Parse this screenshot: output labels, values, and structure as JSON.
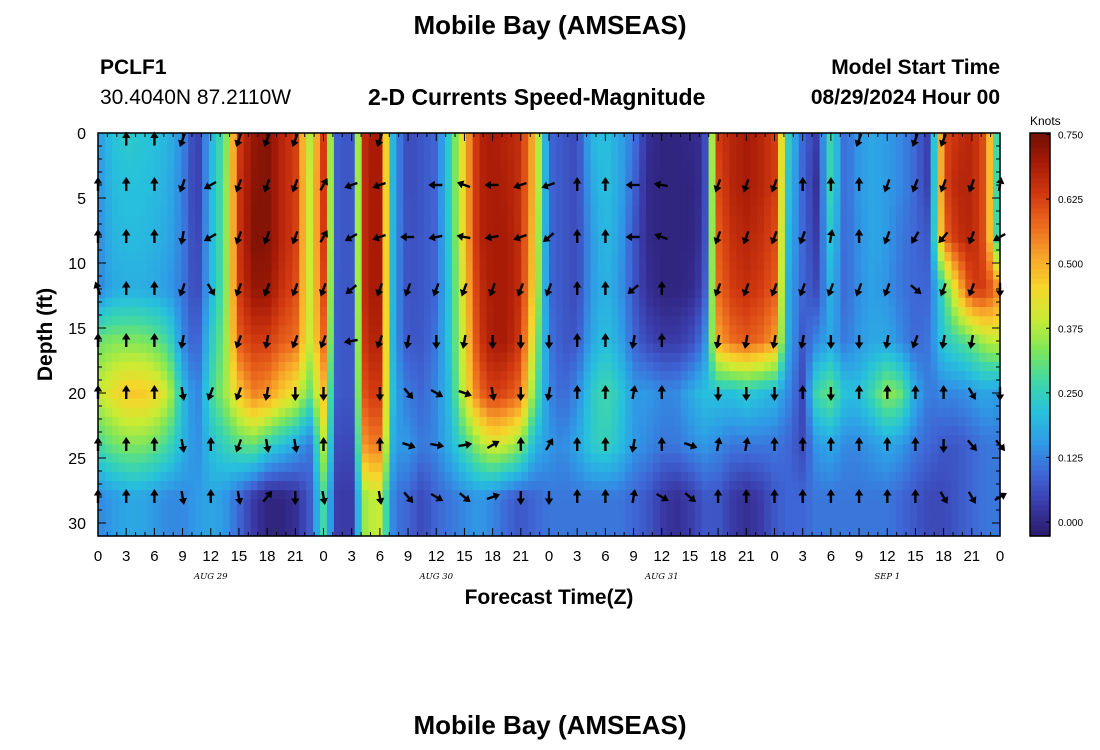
{
  "header": {
    "title": "Mobile Bay (AMSEAS)",
    "station_id": "PCLF1",
    "station_coords": "30.4040N  87.2110W",
    "subtitle": "2-D Currents Speed-Magnitude",
    "model_start_label": "Model Start Time",
    "model_start_value": "08/29/2024 Hour 00"
  },
  "footer": {
    "title_repeat": "Mobile Bay (AMSEAS)"
  },
  "chart_data": {
    "type": "heatmap",
    "title": "2-D Currents Speed-Magnitude",
    "xlabel": "Forecast Time(Z)",
    "ylabel": "Depth (ft)",
    "x_start": "08/29/2024 00Z",
    "x_range_hours": [
      0,
      96
    ],
    "x_tick_labels": [
      "0",
      "3",
      "6",
      "9",
      "12",
      "15",
      "18",
      "21",
      "0",
      "3",
      "6",
      "9",
      "12",
      "15",
      "18",
      "21",
      "0",
      "3",
      "6",
      "9",
      "12",
      "15",
      "18",
      "21",
      "0",
      "3",
      "6",
      "9",
      "12",
      "15",
      "18",
      "21",
      "0"
    ],
    "date_labels": [
      {
        "label": "AUG 29",
        "hour": 12
      },
      {
        "label": "AUG 30",
        "hour": 36
      },
      {
        "label": "AUG 31",
        "hour": 60
      },
      {
        "label": "SEP 1",
        "hour": 84
      }
    ],
    "ylim": [
      0,
      31
    ],
    "y_inverted": true,
    "y_ticks": [
      0,
      5,
      10,
      15,
      20,
      25,
      30
    ],
    "colorbar": {
      "unit": "Knots",
      "range": [
        0,
        0.78
      ],
      "tick_labels": [
        "0.000",
        "0.125",
        "0.250",
        "0.375",
        "0.500",
        "0.625",
        "0.750"
      ],
      "colormap": [
        "#2b1a6a",
        "#3a3aa8",
        "#3f66d6",
        "#2f9ae6",
        "#27c1dc",
        "#3fd8a6",
        "#7fe65a",
        "#c9ec34",
        "#f6d62a",
        "#f7a52a",
        "#ec6a1e",
        "#d23a10",
        "#a81b07",
        "#701005"
      ]
    },
    "depths": [
      0.5,
      4,
      8,
      12,
      16,
      20,
      24,
      28
    ],
    "hours": [
      0,
      1.5,
      3,
      4.5,
      6,
      7.5,
      9,
      10.5,
      12,
      13.5,
      15,
      16.5,
      18,
      19.5,
      21,
      22.5,
      24,
      25.5,
      27,
      28.5,
      30,
      31.5,
      33,
      34.5,
      36,
      37.5,
      39,
      40.5,
      42,
      43.5,
      45,
      46.5,
      48,
      49.5,
      51,
      52.5,
      54,
      55.5,
      57,
      58.5,
      60,
      61.5,
      63,
      64.5,
      66,
      67.5,
      69,
      70.5,
      72,
      73.5,
      75,
      76.5,
      78,
      79.5,
      81,
      82.5,
      84,
      85.5,
      87,
      88.5,
      90,
      91.5,
      93,
      94.5,
      96
    ],
    "speed_knots": [
      [
        0.18,
        0.24,
        0.26,
        0.25,
        0.24,
        0.22,
        0.16,
        0.05,
        0.22,
        0.33,
        0.66,
        0.74,
        0.76,
        0.7,
        0.66,
        0.4,
        0.66,
        0.1,
        0.1,
        0.72,
        0.72,
        0.18,
        0.08,
        0.1,
        0.12,
        0.28,
        0.5,
        0.7,
        0.72,
        0.7,
        0.68,
        0.5,
        0.12,
        0.1,
        0.08,
        0.22,
        0.24,
        0.2,
        0.14,
        0.04,
        0.02,
        0.02,
        0.03,
        0.04,
        0.66,
        0.7,
        0.72,
        0.7,
        0.66,
        0.26,
        0.12,
        0.06,
        0.3,
        0.12,
        0.18,
        0.2,
        0.18,
        0.16,
        0.12,
        0.06,
        0.64,
        0.68,
        0.7,
        0.62,
        0.2
      ],
      [
        0.17,
        0.23,
        0.24,
        0.24,
        0.23,
        0.21,
        0.15,
        0.05,
        0.22,
        0.34,
        0.67,
        0.75,
        0.76,
        0.7,
        0.66,
        0.42,
        0.66,
        0.1,
        0.1,
        0.72,
        0.72,
        0.18,
        0.08,
        0.1,
        0.12,
        0.28,
        0.5,
        0.7,
        0.72,
        0.71,
        0.68,
        0.5,
        0.12,
        0.1,
        0.08,
        0.2,
        0.24,
        0.2,
        0.12,
        0.03,
        0.02,
        0.02,
        0.02,
        0.04,
        0.64,
        0.7,
        0.72,
        0.7,
        0.66,
        0.24,
        0.12,
        0.04,
        0.3,
        0.12,
        0.18,
        0.2,
        0.18,
        0.16,
        0.12,
        0.06,
        0.64,
        0.7,
        0.7,
        0.62,
        0.2
      ],
      [
        0.16,
        0.22,
        0.23,
        0.23,
        0.22,
        0.2,
        0.15,
        0.06,
        0.22,
        0.34,
        0.67,
        0.76,
        0.76,
        0.7,
        0.66,
        0.42,
        0.66,
        0.1,
        0.1,
        0.72,
        0.72,
        0.18,
        0.09,
        0.1,
        0.12,
        0.27,
        0.5,
        0.7,
        0.72,
        0.72,
        0.68,
        0.48,
        0.12,
        0.1,
        0.08,
        0.18,
        0.23,
        0.19,
        0.1,
        0.03,
        0.02,
        0.02,
        0.02,
        0.05,
        0.62,
        0.68,
        0.7,
        0.68,
        0.64,
        0.22,
        0.12,
        0.06,
        0.26,
        0.12,
        0.17,
        0.2,
        0.18,
        0.14,
        0.12,
        0.1,
        0.6,
        0.68,
        0.7,
        0.62,
        0.2
      ],
      [
        0.15,
        0.2,
        0.21,
        0.21,
        0.2,
        0.18,
        0.14,
        0.07,
        0.22,
        0.34,
        0.66,
        0.74,
        0.74,
        0.68,
        0.64,
        0.42,
        0.64,
        0.1,
        0.1,
        0.72,
        0.72,
        0.18,
        0.09,
        0.1,
        0.12,
        0.26,
        0.48,
        0.68,
        0.72,
        0.72,
        0.68,
        0.46,
        0.12,
        0.1,
        0.08,
        0.18,
        0.22,
        0.18,
        0.1,
        0.04,
        0.02,
        0.02,
        0.03,
        0.07,
        0.6,
        0.66,
        0.68,
        0.66,
        0.62,
        0.2,
        0.12,
        0.08,
        0.22,
        0.12,
        0.17,
        0.19,
        0.17,
        0.14,
        0.12,
        0.12,
        0.3,
        0.5,
        0.66,
        0.66,
        0.56
      ],
      [
        0.34,
        0.36,
        0.36,
        0.36,
        0.34,
        0.3,
        0.16,
        0.1,
        0.26,
        0.36,
        0.62,
        0.66,
        0.66,
        0.62,
        0.6,
        0.42,
        0.6,
        0.1,
        0.1,
        0.7,
        0.7,
        0.18,
        0.1,
        0.1,
        0.14,
        0.26,
        0.46,
        0.66,
        0.72,
        0.72,
        0.66,
        0.4,
        0.14,
        0.1,
        0.1,
        0.2,
        0.24,
        0.2,
        0.12,
        0.08,
        0.06,
        0.06,
        0.08,
        0.14,
        0.54,
        0.6,
        0.62,
        0.6,
        0.55,
        0.2,
        0.1,
        0.16,
        0.2,
        0.14,
        0.18,
        0.2,
        0.2,
        0.16,
        0.12,
        0.14,
        0.26,
        0.3,
        0.34,
        0.4,
        0.42
      ],
      [
        0.42,
        0.46,
        0.5,
        0.5,
        0.48,
        0.42,
        0.24,
        0.14,
        0.3,
        0.38,
        0.5,
        0.58,
        0.56,
        0.5,
        0.45,
        0.34,
        0.5,
        0.1,
        0.1,
        0.66,
        0.66,
        0.2,
        0.14,
        0.12,
        0.16,
        0.24,
        0.44,
        0.6,
        0.66,
        0.64,
        0.6,
        0.34,
        0.16,
        0.12,
        0.16,
        0.26,
        0.3,
        0.26,
        0.18,
        0.18,
        0.16,
        0.16,
        0.2,
        0.24,
        0.24,
        0.24,
        0.26,
        0.24,
        0.22,
        0.16,
        0.08,
        0.3,
        0.34,
        0.24,
        0.24,
        0.3,
        0.38,
        0.34,
        0.2,
        0.14,
        0.16,
        0.16,
        0.18,
        0.2,
        0.18
      ],
      [
        0.3,
        0.34,
        0.36,
        0.36,
        0.34,
        0.3,
        0.22,
        0.16,
        0.24,
        0.28,
        0.32,
        0.34,
        0.28,
        0.24,
        0.2,
        0.14,
        0.4,
        0.08,
        0.08,
        0.58,
        0.58,
        0.18,
        0.18,
        0.14,
        0.16,
        0.22,
        0.3,
        0.38,
        0.44,
        0.42,
        0.36,
        0.22,
        0.18,
        0.16,
        0.2,
        0.26,
        0.28,
        0.24,
        0.18,
        0.16,
        0.14,
        0.14,
        0.16,
        0.18,
        0.16,
        0.14,
        0.14,
        0.14,
        0.14,
        0.12,
        0.08,
        0.18,
        0.2,
        0.16,
        0.16,
        0.18,
        0.2,
        0.18,
        0.14,
        0.12,
        0.1,
        0.1,
        0.12,
        0.14,
        0.14
      ],
      [
        0.16,
        0.18,
        0.2,
        0.2,
        0.18,
        0.16,
        0.16,
        0.18,
        0.2,
        0.18,
        0.12,
        0.06,
        0.02,
        0.02,
        0.04,
        0.1,
        0.3,
        0.06,
        0.06,
        0.4,
        0.42,
        0.14,
        0.12,
        0.08,
        0.12,
        0.14,
        0.16,
        0.18,
        0.16,
        0.12,
        0.1,
        0.12,
        0.14,
        0.14,
        0.14,
        0.14,
        0.14,
        0.14,
        0.12,
        0.1,
        0.06,
        0.04,
        0.06,
        0.1,
        0.1,
        0.06,
        0.04,
        0.06,
        0.1,
        0.12,
        0.12,
        0.14,
        0.14,
        0.14,
        0.14,
        0.14,
        0.14,
        0.12,
        0.1,
        0.08,
        0.08,
        0.1,
        0.12,
        0.14,
        0.14
      ]
    ],
    "arrow_hours": [
      0,
      3,
      6,
      9,
      12,
      15,
      18,
      21,
      24,
      27,
      30,
      33,
      36,
      39,
      42,
      45,
      48,
      51,
      54,
      57,
      60,
      63,
      66,
      69,
      72,
      75,
      78,
      81,
      84,
      87,
      90,
      93,
      96
    ],
    "arrow_directions_deg": [
      [
        -1,
        0,
        0,
        200,
        -1,
        200,
        200,
        200,
        -1,
        -1,
        200,
        -1,
        -1,
        -1,
        -1,
        -1,
        -1,
        -1,
        -1,
        -1,
        -1,
        -1,
        -1,
        -1,
        -1,
        -1,
        -1,
        200,
        -1,
        200,
        200,
        -1,
        -1
      ],
      [
        0,
        0,
        0,
        200,
        240,
        200,
        200,
        200,
        30,
        250,
        250,
        -1,
        270,
        290,
        270,
        250,
        250,
        0,
        0,
        270,
        280,
        -1,
        200,
        200,
        200,
        0,
        0,
        0,
        200,
        200,
        200,
        200,
        10
      ],
      [
        0,
        0,
        0,
        190,
        240,
        200,
        200,
        200,
        30,
        240,
        250,
        270,
        260,
        280,
        260,
        250,
        230,
        0,
        0,
        270,
        290,
        -1,
        200,
        200,
        200,
        200,
        10,
        0,
        200,
        210,
        220,
        200,
        240
      ],
      [
        340,
        0,
        0,
        200,
        150,
        200,
        200,
        200,
        200,
        230,
        200,
        200,
        200,
        200,
        200,
        200,
        200,
        0,
        0,
        230,
        0,
        -1,
        200,
        200,
        200,
        200,
        200,
        200,
        200,
        130,
        200,
        200,
        180
      ],
      [
        0,
        0,
        0,
        190,
        -1,
        200,
        190,
        200,
        200,
        260,
        200,
        190,
        180,
        190,
        180,
        180,
        180,
        0,
        0,
        190,
        0,
        -1,
        190,
        190,
        190,
        190,
        180,
        180,
        190,
        200,
        190,
        190,
        -1
      ],
      [
        0,
        0,
        0,
        170,
        200,
        200,
        190,
        180,
        180,
        -1,
        180,
        140,
        120,
        110,
        170,
        180,
        190,
        0,
        0,
        10,
        0,
        -1,
        180,
        180,
        180,
        0,
        180,
        0,
        0,
        0,
        0,
        150,
        180
      ],
      [
        0,
        0,
        0,
        170,
        0,
        200,
        170,
        170,
        0,
        -1,
        0,
        110,
        100,
        80,
        60,
        0,
        30,
        0,
        0,
        190,
        0,
        110,
        10,
        10,
        0,
        0,
        0,
        0,
        0,
        0,
        180,
        140,
        140
      ],
      [
        0,
        0,
        0,
        170,
        0,
        170,
        40,
        180,
        170,
        -1,
        170,
        140,
        120,
        130,
        70,
        180,
        180,
        0,
        0,
        10,
        120,
        130,
        0,
        0,
        0,
        0,
        0,
        0,
        0,
        0,
        150,
        150,
        60
      ]
    ]
  }
}
